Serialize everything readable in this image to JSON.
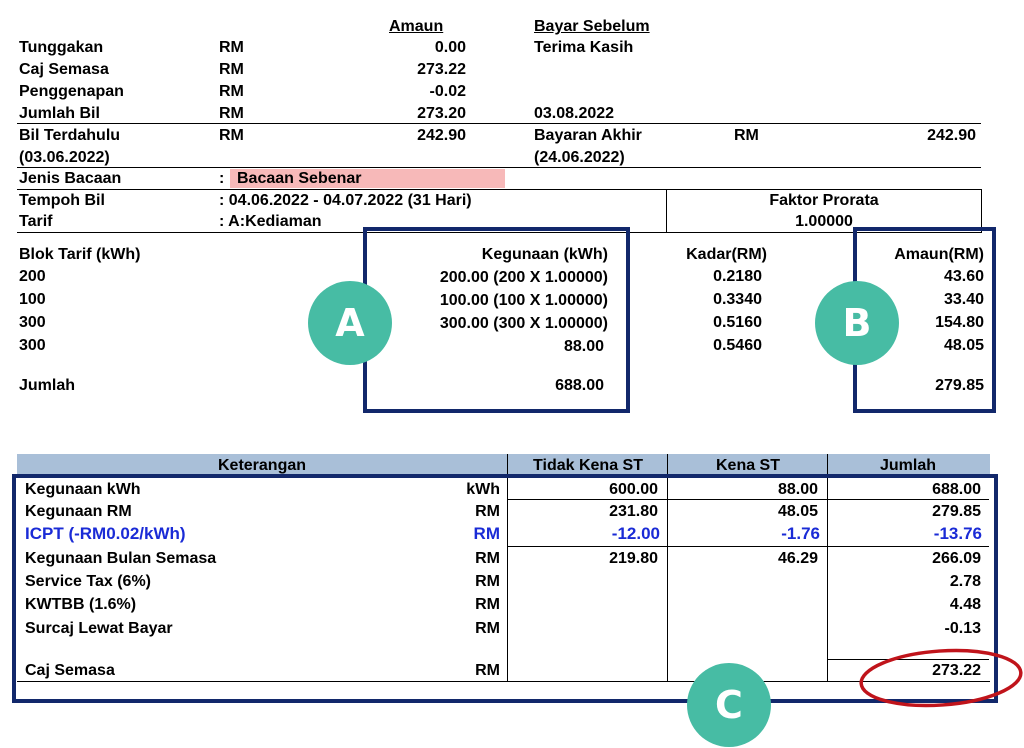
{
  "top": {
    "col_amount_header": "Amaun",
    "col_paybefore_header": "Bayar Sebelum",
    "thanks": "Terima Kasih",
    "rows": [
      {
        "label": "Tunggakan",
        "cur": "RM",
        "amount": "0.00"
      },
      {
        "label": "Caj Semasa",
        "cur": "RM",
        "amount": "273.22"
      },
      {
        "label": "Penggenapan",
        "cur": "RM",
        "amount": "-0.02"
      },
      {
        "label": "Jumlah Bil",
        "cur": "RM",
        "amount": "273.20"
      }
    ],
    "due_date": "03.08.2022",
    "prev_bill_label": "Bil Terdahulu",
    "prev_bill_date": "(03.06.2022)",
    "prev_bill_cur": "RM",
    "prev_bill_amount": "242.90",
    "last_pay_label": "Bayaran Akhir",
    "last_pay_date": "(24.06.2022)",
    "last_pay_cur": "RM",
    "last_pay_amount": "242.90"
  },
  "reading": {
    "label": "Jenis Bacaan",
    "colon": ":",
    "value": "Bacaan Sebenar"
  },
  "period": {
    "label": "Tempoh Bil",
    "value": ": 04.06.2022 - 04.07.2022 (31 Hari)",
    "tarif_label": "Tarif",
    "tarif_value": ": A:Kediaman",
    "prorata_label": "Faktor Prorata",
    "prorata_value": "1.00000"
  },
  "blocks": {
    "h_block": "Blok Tarif (kWh)",
    "h_usage": "Kegunaan (kWh)",
    "h_rate": "Kadar(RM)",
    "h_amount": "Amaun(RM)",
    "rows": [
      {
        "block": "200",
        "usage": "200.00  (200 X 1.00000)",
        "rate": "0.2180",
        "amount": "43.60"
      },
      {
        "block": "100",
        "usage": "100.00  (100 X 1.00000)",
        "rate": "0.3340",
        "amount": "33.40"
      },
      {
        "block": "300",
        "usage": "300.00  (300 X 1.00000)",
        "rate": "0.5160",
        "amount": "154.80"
      },
      {
        "block": "300",
        "usage": "88.00",
        "rate": "0.5460",
        "amount": "48.05"
      }
    ],
    "total_label": "Jumlah",
    "total_usage": "688.00",
    "total_amount": "279.85"
  },
  "summary": {
    "h_desc": "Keterangan",
    "h_no_st": "Tidak Kena ST",
    "h_st": "Kena ST",
    "h_total": "Jumlah",
    "rows": [
      {
        "label": "Kegunaan kWh",
        "unit": "kWh",
        "no_st": "600.00",
        "st": "88.00",
        "total": "688.00"
      },
      {
        "label": "Kegunaan RM",
        "unit": "RM",
        "no_st": "231.80",
        "st": "48.05",
        "total": "279.85"
      },
      {
        "label": "ICPT (-RM0.02/kWh)",
        "unit": "RM",
        "no_st": "-12.00",
        "st": "-1.76",
        "total": "-13.76"
      },
      {
        "label": "Kegunaan Bulan Semasa",
        "unit": "RM",
        "no_st": "219.80",
        "st": "46.29",
        "total": "266.09"
      },
      {
        "label": "Service Tax (6%)",
        "unit": "RM",
        "total": "2.78"
      },
      {
        "label": "KWTBB (1.6%)",
        "unit": "RM",
        "total": "4.48"
      },
      {
        "label": "Surcaj Lewat Bayar",
        "unit": "RM",
        "total": "-0.13"
      },
      {
        "label": "Caj Semasa",
        "unit": "RM",
        "total": "273.22"
      }
    ]
  },
  "badges": {
    "a": "A",
    "b": "B",
    "c": "C"
  },
  "colors": {
    "box_border": "#12286b",
    "badge": "#47bca4",
    "highlight": "#f7b9b9",
    "header_band": "#a9bfd8",
    "icpt_text": "#1a2bd6",
    "circle": "#c0141b"
  }
}
